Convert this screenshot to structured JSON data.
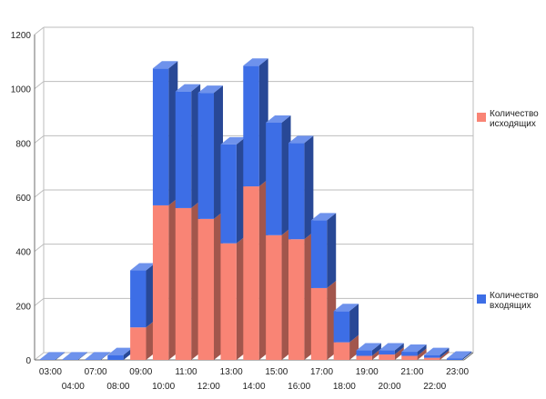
{
  "chart_data": {
    "type": "bar",
    "stacked": true,
    "three_d": true,
    "categories": [
      "03:00",
      "04:00",
      "07:00",
      "08:00",
      "09:00",
      "10:00",
      "11:00",
      "12:00",
      "13:00",
      "14:00",
      "15:00",
      "16:00",
      "17:00",
      "18:00",
      "19:00",
      "20:00",
      "21:00",
      "22:00",
      "23:00"
    ],
    "series": [
      {
        "name": "Количество исходящих",
        "color": "#f98475",
        "values": [
          0,
          0,
          0,
          0,
          120,
          570,
          560,
          520,
          430,
          640,
          460,
          445,
          265,
          65,
          15,
          20,
          15,
          8,
          0
        ]
      },
      {
        "name": "Количество входящих",
        "color": "#3d6ee6",
        "values": [
          2,
          2,
          2,
          18,
          210,
          505,
          430,
          465,
          365,
          445,
          415,
          355,
          250,
          115,
          20,
          15,
          15,
          10,
          5
        ]
      }
    ],
    "yticks": [
      "0",
      "200",
      "400",
      "600",
      "800",
      "1000",
      "1200"
    ],
    "ylim": [
      0,
      1200
    ],
    "grid": true,
    "legend_position": "right",
    "title": "",
    "xlabel": "",
    "ylabel": ""
  },
  "legend": [
    {
      "label_line1": "Количество",
      "label_line2": "исходящих",
      "color": "#f98475"
    },
    {
      "label_line1": "Количество",
      "label_line2": "входящих",
      "color": "#3d6ee6"
    }
  ]
}
